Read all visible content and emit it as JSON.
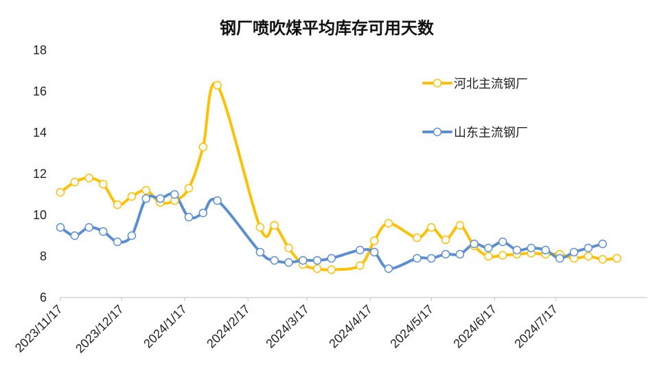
{
  "chart_data": {
    "type": "line",
    "title": "钢厂喷吹煤平均库存可用天数",
    "ylim": [
      6,
      18
    ],
    "yticks": [
      6,
      8,
      10,
      12,
      14,
      16,
      18
    ],
    "x_tick_labels": [
      "2023/11/17",
      "2023/12/17",
      "2024/1/17",
      "2024/2/17",
      "2024/3/17",
      "2024/4/17",
      "2024/5/17",
      "2024/6/17",
      "2024/7/17"
    ],
    "x_tick_dates": [
      "2023-11-17",
      "2023-12-17",
      "2024-01-17",
      "2024-02-17",
      "2024-03-17",
      "2024-04-17",
      "2024-05-17",
      "2024-06-17",
      "2024-07-17"
    ],
    "x_range": [
      "2023-11-17",
      "2024-08-31"
    ],
    "grid": false,
    "legend_position": "top-right",
    "series": [
      {
        "name": "河北主流钢厂",
        "color": "#FFC000",
        "points": [
          [
            "2023-11-17",
            11.1
          ],
          [
            "2023-11-24",
            11.6
          ],
          [
            "2023-12-01",
            11.8
          ],
          [
            "2023-12-08",
            11.5
          ],
          [
            "2023-12-15",
            10.5
          ],
          [
            "2023-12-22",
            10.9
          ],
          [
            "2023-12-29",
            11.2
          ],
          [
            "2024-01-05",
            10.6
          ],
          [
            "2024-01-12",
            10.7
          ],
          [
            "2024-01-19",
            11.3
          ],
          [
            "2024-01-26",
            13.3
          ],
          [
            "2024-02-02",
            16.3
          ],
          [
            "2024-02-23",
            9.4
          ],
          [
            "2024-03-01",
            9.5
          ],
          [
            "2024-03-08",
            8.4
          ],
          [
            "2024-03-15",
            7.6
          ],
          [
            "2024-03-22",
            7.4
          ],
          [
            "2024-03-29",
            7.35
          ],
          [
            "2024-04-12",
            7.55
          ],
          [
            "2024-04-19",
            8.75
          ],
          [
            "2024-04-26",
            9.6
          ],
          [
            "2024-05-10",
            8.9
          ],
          [
            "2024-05-17",
            9.4
          ],
          [
            "2024-05-24",
            8.8
          ],
          [
            "2024-05-31",
            9.5
          ],
          [
            "2024-06-07",
            8.5
          ],
          [
            "2024-06-14",
            8.0
          ],
          [
            "2024-06-21",
            8.05
          ],
          [
            "2024-06-28",
            8.1
          ],
          [
            "2024-07-05",
            8.15
          ],
          [
            "2024-07-12",
            8.1
          ],
          [
            "2024-07-19",
            8.1
          ],
          [
            "2024-07-26",
            7.9
          ],
          [
            "2024-08-02",
            8.0
          ],
          [
            "2024-08-09",
            7.85
          ],
          [
            "2024-08-16",
            7.9
          ]
        ]
      },
      {
        "name": "山东主流钢厂",
        "color": "#5B8FD2",
        "points": [
          [
            "2023-11-17",
            9.4
          ],
          [
            "2023-11-24",
            9.0
          ],
          [
            "2023-12-01",
            9.4
          ],
          [
            "2023-12-08",
            9.2
          ],
          [
            "2023-12-15",
            8.7
          ],
          [
            "2023-12-22",
            9.0
          ],
          [
            "2023-12-29",
            10.8
          ],
          [
            "2024-01-05",
            10.8
          ],
          [
            "2024-01-12",
            11.0
          ],
          [
            "2024-01-19",
            9.9
          ],
          [
            "2024-01-26",
            10.1
          ],
          [
            "2024-02-02",
            10.7
          ],
          [
            "2024-02-23",
            8.2
          ],
          [
            "2024-03-01",
            7.8
          ],
          [
            "2024-03-08",
            7.7
          ],
          [
            "2024-03-15",
            7.8
          ],
          [
            "2024-03-22",
            7.8
          ],
          [
            "2024-03-29",
            7.9
          ],
          [
            "2024-04-12",
            8.3
          ],
          [
            "2024-04-19",
            8.2
          ],
          [
            "2024-04-26",
            7.4
          ],
          [
            "2024-05-10",
            7.9
          ],
          [
            "2024-05-17",
            7.9
          ],
          [
            "2024-05-24",
            8.1
          ],
          [
            "2024-05-31",
            8.1
          ],
          [
            "2024-06-07",
            8.6
          ],
          [
            "2024-06-14",
            8.4
          ],
          [
            "2024-06-21",
            8.7
          ],
          [
            "2024-06-28",
            8.3
          ],
          [
            "2024-07-05",
            8.4
          ],
          [
            "2024-07-12",
            8.3
          ],
          [
            "2024-07-19",
            7.9
          ],
          [
            "2024-07-26",
            8.2
          ],
          [
            "2024-08-02",
            8.4
          ],
          [
            "2024-08-09",
            8.6
          ]
        ]
      }
    ]
  }
}
